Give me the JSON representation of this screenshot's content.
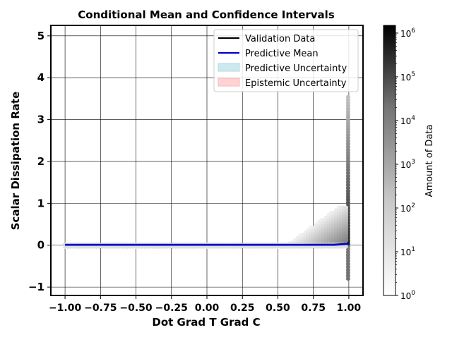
{
  "chart_data": {
    "type": "scatter",
    "title": "Conditional Mean and Confidence Intervals",
    "xlabel": "Dot Grad T Grad C",
    "ylabel": "Scalar Dissipation Rate",
    "xlim": [
      -1.1,
      1.1
    ],
    "ylim": [
      -1.2,
      5.25
    ],
    "x_ticks": [
      "−1.00",
      "−0.75",
      "−0.50",
      "−0.25",
      "0.00",
      "0.25",
      "0.50",
      "0.75",
      "1.00"
    ],
    "x_tick_values": [
      -1.0,
      -0.75,
      -0.5,
      -0.25,
      0.0,
      0.25,
      0.5,
      0.75,
      1.0
    ],
    "y_ticks": [
      "−1",
      "0",
      "1",
      "2",
      "3",
      "4",
      "5"
    ],
    "y_tick_values": [
      -1,
      0,
      1,
      2,
      3,
      4,
      5
    ],
    "grid": true,
    "legend_position": "top-right",
    "legend": [
      {
        "label": "Validation Data",
        "kind": "line",
        "color": "#000000"
      },
      {
        "label": "Predictive Mean",
        "kind": "line",
        "color": "#0000cc"
      },
      {
        "label": "Predictive Uncertainty",
        "kind": "patch",
        "color": "#add8e6"
      },
      {
        "label": "Epistemic Uncertainty",
        "kind": "patch",
        "color": "#ffb6b6"
      }
    ],
    "series": [
      {
        "name": "Validation Data",
        "x": [
          -1.0,
          -0.5,
          0.0,
          0.5,
          0.9,
          0.99,
          1.0
        ],
        "y": [
          0.01,
          0.01,
          0.01,
          0.01,
          0.02,
          0.04,
          0.08
        ]
      },
      {
        "name": "Predictive Mean",
        "x": [
          -1.0,
          -0.5,
          0.0,
          0.5,
          0.9,
          0.99,
          1.0
        ],
        "y": [
          0.01,
          0.01,
          0.01,
          0.01,
          0.01,
          0.03,
          0.06
        ]
      }
    ],
    "density": {
      "type": "hexbin",
      "colorbar_label": "Amount of Data",
      "colorbar_scale": "log",
      "colorbar_range": [
        1,
        1500000
      ],
      "colorbar_ticks": [
        {
          "base": "10",
          "exp": "0",
          "value": 1
        },
        {
          "base": "10",
          "exp": "1",
          "value": 10
        },
        {
          "base": "10",
          "exp": "2",
          "value": 100
        },
        {
          "base": "10",
          "exp": "3",
          "value": 1000
        },
        {
          "base": "10",
          "exp": "4",
          "value": 10000
        },
        {
          "base": "10",
          "exp": "5",
          "value": 100000
        },
        {
          "base": "10",
          "exp": "6",
          "value": 1000000
        }
      ],
      "colormap": "Greys"
    }
  }
}
